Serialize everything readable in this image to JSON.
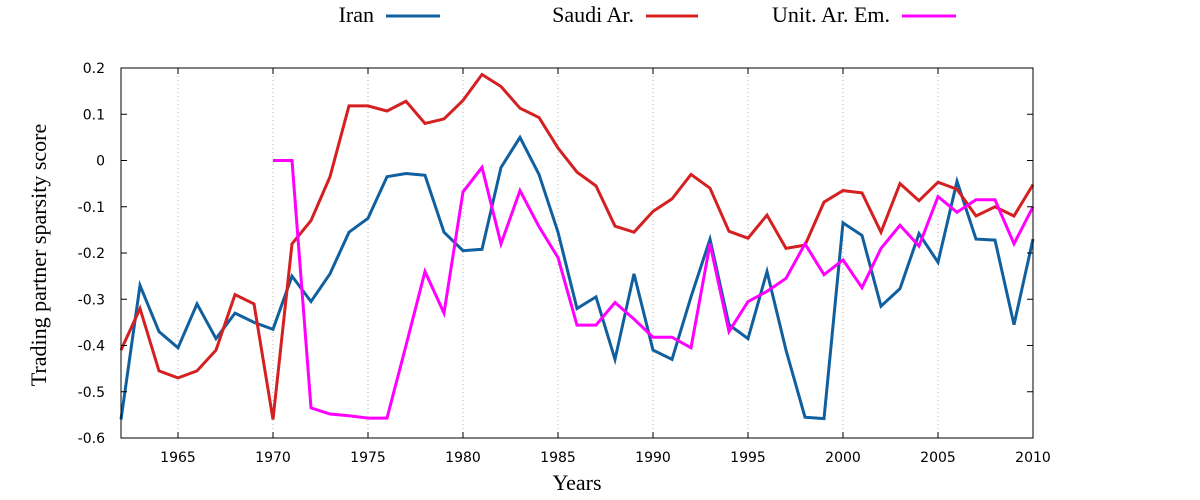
{
  "chart_data": {
    "type": "line",
    "xlabel": "Years",
    "ylabel": "Trading partner sparsity score",
    "xlim": [
      1962,
      2010
    ],
    "ylim": [
      -0.6,
      0.2
    ],
    "x_ticks": [
      1965,
      1970,
      1975,
      1980,
      1985,
      1990,
      1995,
      2000,
      2005,
      2010
    ],
    "x_tick_labels": [
      "1965",
      "1970",
      "1975",
      "1980",
      "1985",
      "1990",
      "1995",
      "2000",
      "2005",
      "2010"
    ],
    "y_ticks": [
      0.2,
      0.1,
      0,
      -0.1,
      -0.2,
      -0.3,
      -0.4,
      -0.5,
      -0.6
    ],
    "y_tick_labels": [
      "0.2",
      "0.1",
      "0",
      "-0.1",
      "-0.2",
      "-0.3",
      "-0.4",
      "-0.5",
      "-0.6"
    ],
    "grid": "vertical dotted lines at x ticks",
    "legend_position": "top",
    "series": [
      {
        "name": "Iran",
        "color": "#1060a0",
        "x": [
          1962,
          1963,
          1964,
          1965,
          1966,
          1967,
          1968,
          1969,
          1970,
          1971,
          1972,
          1973,
          1974,
          1975,
          1976,
          1977,
          1978,
          1979,
          1980,
          1981,
          1982,
          1983,
          1984,
          1985,
          1986,
          1987,
          1988,
          1989,
          1990,
          1991,
          1992,
          1993,
          1994,
          1995,
          1996,
          1997,
          1998,
          1999,
          2000,
          2001,
          2002,
          2003,
          2004,
          2005,
          2006,
          2007,
          2008,
          2009,
          2010
        ],
        "values": [
          -0.56,
          -0.27,
          -0.37,
          -0.405,
          -0.31,
          -0.385,
          -0.33,
          -0.35,
          -0.365,
          -0.25,
          -0.305,
          -0.245,
          -0.155,
          -0.125,
          -0.035,
          -0.028,
          -0.032,
          -0.155,
          -0.195,
          -0.192,
          -0.015,
          0.05,
          -0.03,
          -0.155,
          -0.32,
          -0.295,
          -0.43,
          -0.245,
          -0.41,
          -0.43,
          -0.295,
          -0.17,
          -0.355,
          -0.385,
          -0.24,
          -0.41,
          -0.555,
          -0.558,
          -0.135,
          -0.162,
          -0.315,
          -0.277,
          -0.158,
          -0.22,
          -0.045,
          -0.17,
          -0.172,
          -0.355,
          -0.17
        ]
      },
      {
        "name": "Saudi Ar.",
        "color": "#d42020",
        "x": [
          1962,
          1963,
          1964,
          1965,
          1966,
          1967,
          1968,
          1969,
          1970,
          1971,
          1972,
          1973,
          1974,
          1975,
          1976,
          1977,
          1978,
          1979,
          1980,
          1981,
          1982,
          1983,
          1984,
          1985,
          1986,
          1987,
          1988,
          1989,
          1990,
          1991,
          1992,
          1993,
          1994,
          1995,
          1996,
          1997,
          1998,
          1999,
          2000,
          2001,
          2002,
          2003,
          2004,
          2005,
          2006,
          2007,
          2008,
          2009,
          2010
        ],
        "values": [
          -0.41,
          -0.32,
          -0.455,
          -0.47,
          -0.455,
          -0.41,
          -0.29,
          -0.31,
          -0.56,
          -0.18,
          -0.13,
          -0.035,
          0.118,
          0.118,
          0.107,
          0.128,
          0.08,
          0.09,
          0.13,
          0.186,
          0.16,
          0.113,
          0.093,
          0.027,
          -0.025,
          -0.055,
          -0.142,
          -0.155,
          -0.11,
          -0.083,
          -0.03,
          -0.06,
          -0.153,
          -0.168,
          -0.118,
          -0.19,
          -0.183,
          -0.09,
          -0.065,
          -0.07,
          -0.155,
          -0.05,
          -0.087,
          -0.047,
          -0.062,
          -0.12,
          -0.1,
          -0.12,
          -0.052
        ]
      },
      {
        "name": "Unit. Ar. Em.",
        "color": "#ff00ff",
        "x": [
          1970,
          1971,
          1972,
          1973,
          1974,
          1975,
          1976,
          1977,
          1978,
          1979,
          1980,
          1981,
          1982,
          1983,
          1984,
          1985,
          1986,
          1987,
          1988,
          1989,
          1990,
          1991,
          1992,
          1993,
          1994,
          1995,
          1996,
          1997,
          1998,
          1999,
          2000,
          2001,
          2002,
          2003,
          2004,
          2005,
          2006,
          2007,
          2008,
          2009,
          2010
        ],
        "values": [
          0,
          0,
          -0.535,
          -0.548,
          -0.552,
          -0.557,
          -0.557,
          -0.4,
          -0.24,
          -0.33,
          -0.068,
          -0.015,
          -0.18,
          -0.065,
          -0.143,
          -0.21,
          -0.356,
          -0.356,
          -0.307,
          -0.343,
          -0.382,
          -0.382,
          -0.405,
          -0.18,
          -0.37,
          -0.305,
          -0.283,
          -0.255,
          -0.18,
          -0.247,
          -0.215,
          -0.275,
          -0.19,
          -0.14,
          -0.185,
          -0.078,
          -0.112,
          -0.085,
          -0.085,
          -0.18,
          -0.1
        ]
      }
    ]
  }
}
